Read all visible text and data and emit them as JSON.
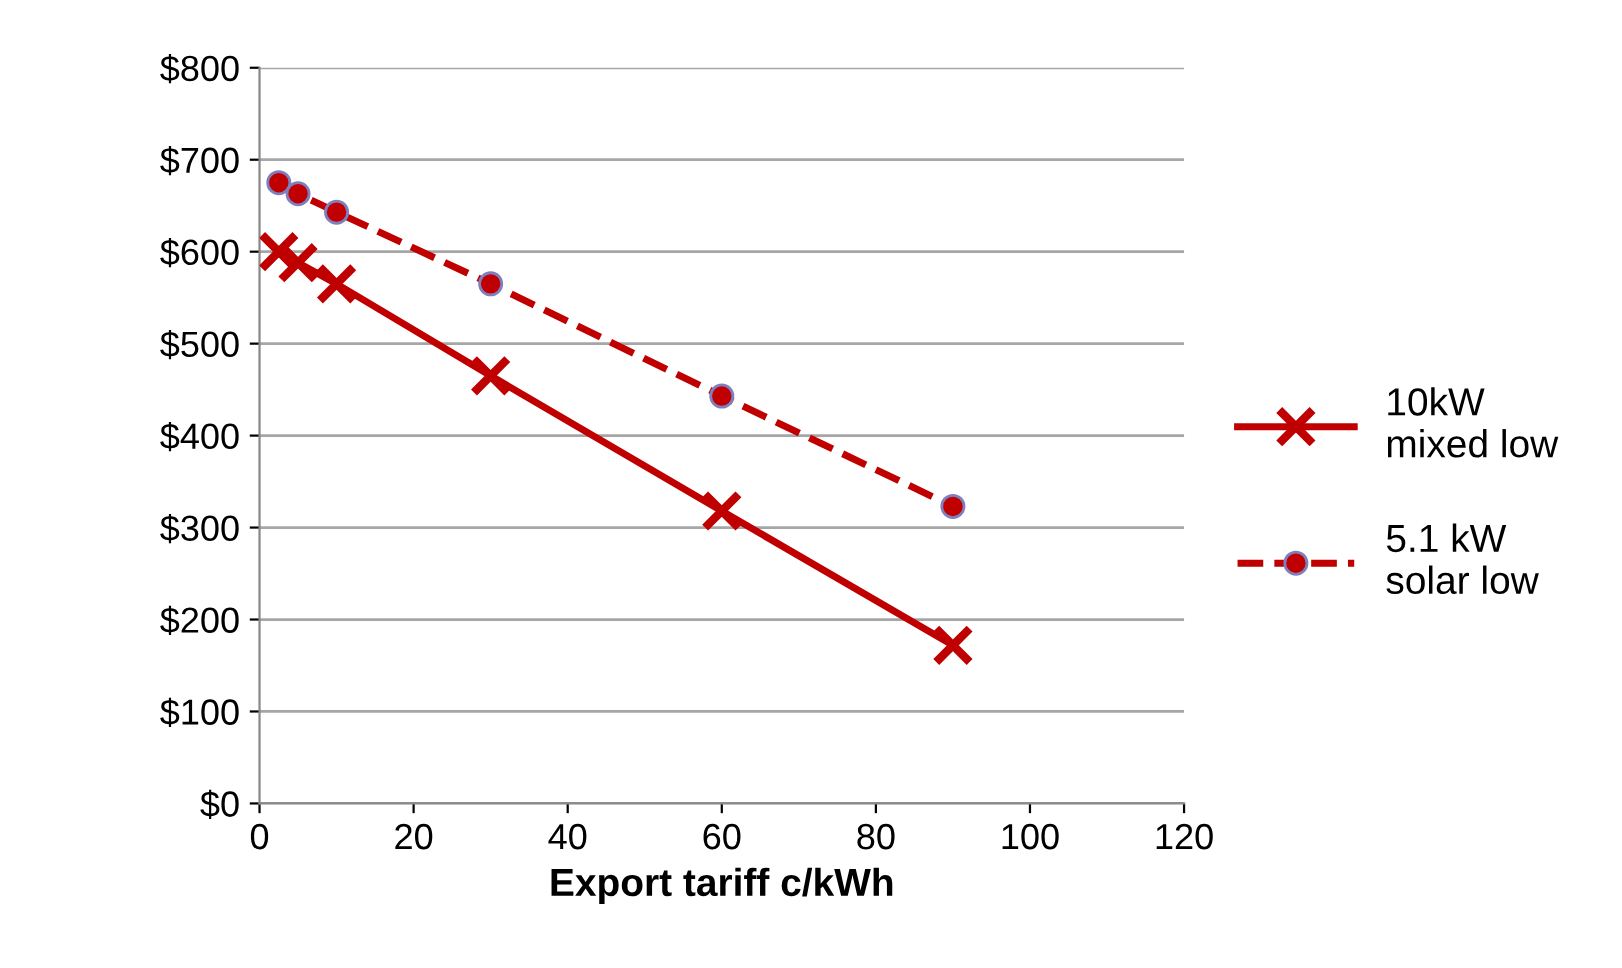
{
  "chart_data": {
    "type": "line",
    "xlabel": "Export tariff c/kWh",
    "xlim": [
      0,
      120
    ],
    "xticks": [
      0,
      20,
      40,
      60,
      80,
      100,
      120
    ],
    "ylim": [
      0,
      800
    ],
    "yticks": [
      {
        "value": 0,
        "label": "$0"
      },
      {
        "value": 100,
        "label": "$100"
      },
      {
        "value": 200,
        "label": "$200"
      },
      {
        "value": 300,
        "label": "$300"
      },
      {
        "value": 400,
        "label": "$400"
      },
      {
        "value": 500,
        "label": "$500"
      },
      {
        "value": 600,
        "label": "$600"
      },
      {
        "value": 700,
        "label": "$700"
      },
      {
        "value": 800,
        "label": "$800"
      }
    ],
    "grid": "y",
    "legend": "right",
    "series": [
      {
        "name": "10kW\nmixed low",
        "color": "#c00000",
        "marker": "cross",
        "line_style": "solid",
        "x": [
          2.5,
          5,
          10,
          30,
          60,
          90
        ],
        "values": [
          600,
          588,
          565,
          465,
          318,
          172
        ]
      },
      {
        "name": "5.1 kW\nsolar low",
        "color": "#c00000",
        "marker": "circle",
        "line_style": "dashed",
        "x": [
          2.5,
          5,
          10,
          30,
          60,
          90
        ],
        "values": [
          675,
          663,
          643,
          565,
          443,
          323
        ]
      }
    ]
  }
}
